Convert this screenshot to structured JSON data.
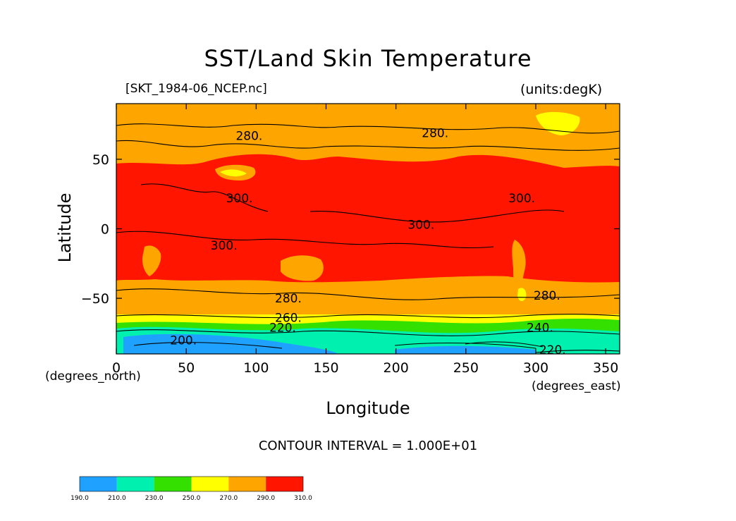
{
  "chart_data": {
    "type": "heatmap",
    "title": "SST/Land Skin Temperature",
    "subtitle_left": "[SKT_1984-06_NCEP.nc]",
    "subtitle_right": "(units:degK)",
    "xlabel": "Longitude",
    "ylabel": "Latitude",
    "x_unit_label": "(degrees_east)",
    "y_unit_label": "(degrees_north)",
    "xlim": [
      0,
      360
    ],
    "ylim": [
      -90,
      90
    ],
    "x_ticks": [
      0,
      50,
      100,
      150,
      200,
      250,
      300,
      350
    ],
    "x_tick_labels": [
      "0",
      "50",
      "100",
      "150",
      "200",
      "250",
      "300",
      "350"
    ],
    "y_ticks": [
      -50,
      0,
      50
    ],
    "y_tick_labels": [
      "−50",
      "0",
      "50"
    ],
    "contour_interval_text": "CONTOUR INTERVAL = 1.000E+01",
    "colorbar": {
      "levels": [
        190,
        210,
        230,
        250,
        270,
        290,
        310
      ],
      "labels": [
        "190.0",
        "210.0",
        "230.0",
        "250.0",
        "270.0",
        "290.0",
        "310.0"
      ],
      "colors": [
        "#1fa2ff",
        "#00f0b0",
        "#33e000",
        "#ffff00",
        "#ffa500",
        "#ff1500"
      ]
    },
    "contour_labels": [
      {
        "text": "280.",
        "lon": 95,
        "lat": 67
      },
      {
        "text": "280.",
        "lon": 228,
        "lat": 69
      },
      {
        "text": "300.",
        "lon": 88,
        "lat": 22
      },
      {
        "text": "300.",
        "lon": 290,
        "lat": 22
      },
      {
        "text": "300.",
        "lon": 218,
        "lat": 3
      },
      {
        "text": "300.",
        "lon": 77,
        "lat": -12
      },
      {
        "text": "280.",
        "lon": 123,
        "lat": -50
      },
      {
        "text": "280.",
        "lon": 308,
        "lat": -48
      },
      {
        "text": "260.",
        "lon": 123,
        "lat": -64
      },
      {
        "text": "220.",
        "lon": 119,
        "lat": -71
      },
      {
        "text": "240.",
        "lon": 303,
        "lat": -71
      },
      {
        "text": "200.",
        "lon": 48,
        "lat": -80
      },
      {
        "text": "220.",
        "lon": 312,
        "lat": -87
      }
    ],
    "grid": false,
    "legend_position": "bottom-left colorbar"
  }
}
